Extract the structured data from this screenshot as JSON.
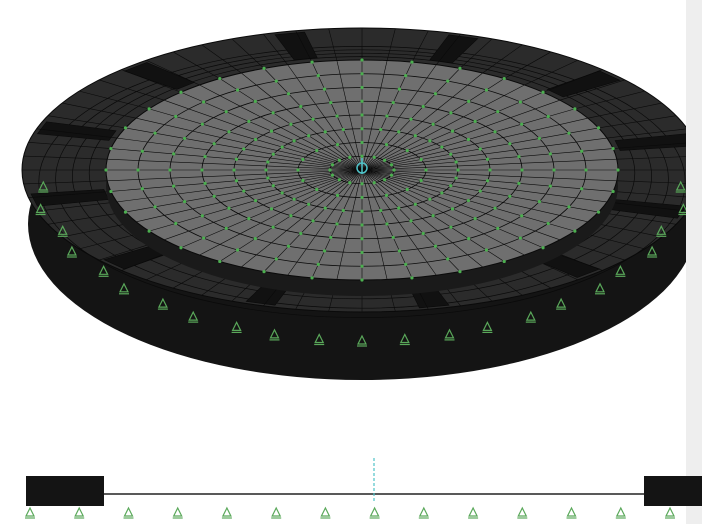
{
  "colors": {
    "background": "#ffffff",
    "side_panel": "#eeeeee",
    "outer_ring": "#2b2b2b",
    "outer_ring_shadow": "#141414",
    "inner_plate": "#6f6f6f",
    "mesh_line": "#0a0a0a",
    "node_marker": "#4caf50",
    "support_symbol": "#5aa85a",
    "center_marker": "#4fc3c8"
  },
  "model": {
    "plan_view": {
      "radial_divisions": 64,
      "inner_rings": 7,
      "outer_rings": 4,
      "wall_segments": 12
    },
    "elevation_view": {
      "support_count": 14
    }
  },
  "icons": {
    "node": "node-marker-icon",
    "support": "support-icon",
    "center": "center-axis-icon"
  }
}
